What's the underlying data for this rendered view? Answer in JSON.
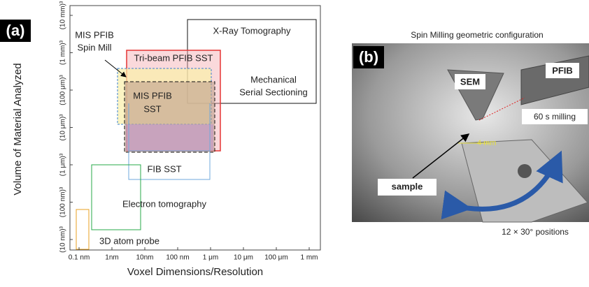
{
  "panel_a": {
    "label": "(a)",
    "x_axis_label": "Voxel Dimensions/Resolution",
    "y_axis_label": "Volume of Material Analyzed",
    "x_ticks": [
      "0.1 nm",
      "1nm",
      "10nm",
      "100 nm",
      "1 μm",
      "10 μm",
      "100 μm",
      "1 mm"
    ],
    "y_ticks": [
      "(10 nm)³",
      "(100 nm)³",
      "(1 μm)³",
      "(10 μm)³",
      "(100 μm)³",
      "(1 mm)³",
      "(10 mm)³"
    ],
    "regions": {
      "xray": "X-Ray Tomography",
      "spin_mill": [
        "MIS PFIB",
        "Spin Mill"
      ],
      "tribeam": "Tri-beam PFIB SST",
      "mechanical": [
        "Mechanical",
        "Serial Sectioning"
      ],
      "mis_sst": [
        "MIS PFIB",
        "SST"
      ],
      "fib_sst": "FIB SST",
      "electron": "Electron tomography",
      "atom_probe": "3D atom probe"
    }
  },
  "panel_b": {
    "label": "(b)",
    "caption": "Spin Milling geometric configuration",
    "sem": "SEM",
    "pfib": "PFIB",
    "milling": "60 s milling",
    "scale": "4 mm",
    "sample": "sample",
    "positions": "12 × 30° positions"
  }
}
